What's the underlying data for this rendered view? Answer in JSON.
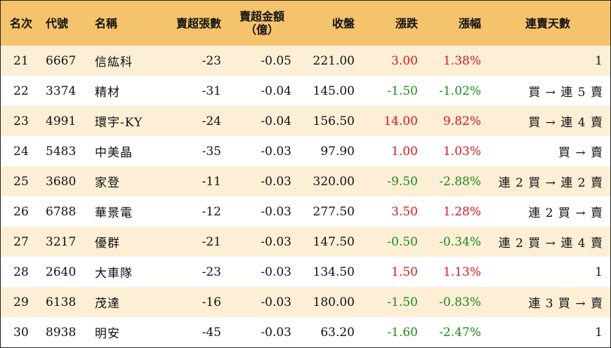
{
  "headers": {
    "rank": "名次",
    "code": "代號",
    "name": "名稱",
    "net_sell_lots": "賣超張數",
    "net_sell_amount_line1": "賣超金額",
    "net_sell_amount_line2": "（億）",
    "close": "收盤",
    "change": "漲跌",
    "change_pct": "漲幅",
    "streak": "連賣天數"
  },
  "colors": {
    "header_bg": "#f5c36b",
    "row_alt_bg": "#fcefd6",
    "up": "#e0141e",
    "down": "#1a8a1a"
  },
  "rows": [
    {
      "rank": "21",
      "code": "6667",
      "name": "信紘科",
      "lots": "-23",
      "amount": "-0.05",
      "close": "221.00",
      "change": "3.00",
      "pct": "1.38%",
      "dir": "up",
      "streak": "1"
    },
    {
      "rank": "22",
      "code": "3374",
      "name": "精材",
      "lots": "-31",
      "amount": "-0.04",
      "close": "145.00",
      "change": "-1.50",
      "pct": "-1.02%",
      "dir": "down",
      "streak": "買 → 連 5 賣"
    },
    {
      "rank": "23",
      "code": "4991",
      "name": "環宇-KY",
      "lots": "-24",
      "amount": "-0.04",
      "close": "156.50",
      "change": "14.00",
      "pct": "9.82%",
      "dir": "up",
      "streak": "買 → 連 4 賣"
    },
    {
      "rank": "24",
      "code": "5483",
      "name": "中美晶",
      "lots": "-35",
      "amount": "-0.03",
      "close": "97.90",
      "change": "1.00",
      "pct": "1.03%",
      "dir": "up",
      "streak": "買 → 賣"
    },
    {
      "rank": "25",
      "code": "3680",
      "name": "家登",
      "lots": "-11",
      "amount": "-0.03",
      "close": "320.00",
      "change": "-9.50",
      "pct": "-2.88%",
      "dir": "down",
      "streak": "連 2 買 → 連 2 賣"
    },
    {
      "rank": "26",
      "code": "6788",
      "name": "華景電",
      "lots": "-12",
      "amount": "-0.03",
      "close": "277.50",
      "change": "3.50",
      "pct": "1.28%",
      "dir": "up",
      "streak": "連 2 買 → 賣"
    },
    {
      "rank": "27",
      "code": "3217",
      "name": "優群",
      "lots": "-21",
      "amount": "-0.03",
      "close": "147.50",
      "change": "-0.50",
      "pct": "-0.34%",
      "dir": "down",
      "streak": "連 2 買 → 連 4 賣"
    },
    {
      "rank": "28",
      "code": "2640",
      "name": "大車隊",
      "lots": "-23",
      "amount": "-0.03",
      "close": "134.50",
      "change": "1.50",
      "pct": "1.13%",
      "dir": "up",
      "streak": "1"
    },
    {
      "rank": "29",
      "code": "6138",
      "name": "茂達",
      "lots": "-16",
      "amount": "-0.03",
      "close": "180.00",
      "change": "-1.50",
      "pct": "-0.83%",
      "dir": "down",
      "streak": "連 3 買 → 賣"
    },
    {
      "rank": "30",
      "code": "8938",
      "name": "明安",
      "lots": "-45",
      "amount": "-0.03",
      "close": "63.20",
      "change": "-1.60",
      "pct": "-2.47%",
      "dir": "down",
      "streak": "1"
    }
  ]
}
